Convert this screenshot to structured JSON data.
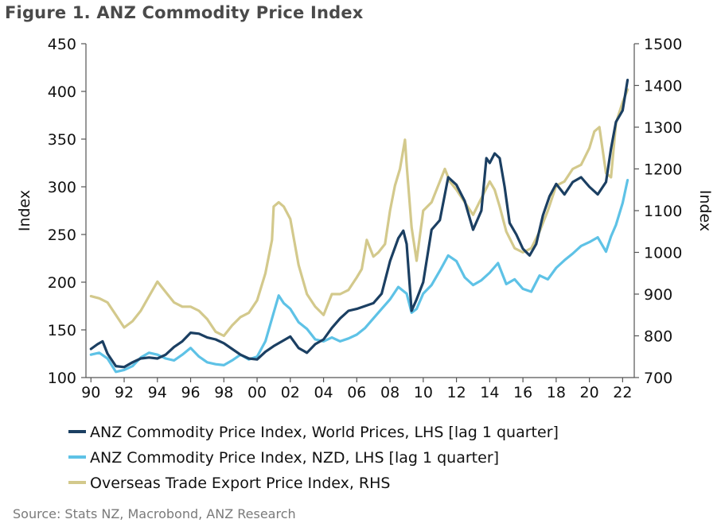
{
  "title": "Figure 1.  ANZ Commodity Price Index",
  "source": "Source: Stats NZ, Macrobond, ANZ Research",
  "chart_data": {
    "type": "line",
    "title": "Figure 1.  ANZ Commodity Price Index",
    "ylabel": "Index",
    "y2label": "Index",
    "ylim": [
      100,
      450
    ],
    "y2lim": [
      700,
      1500
    ],
    "yticks": [
      100,
      150,
      200,
      250,
      300,
      350,
      400,
      450
    ],
    "y2ticks": [
      700,
      800,
      900,
      1000,
      1100,
      1200,
      1300,
      1400,
      1500
    ],
    "xlim": [
      1989.7,
      2022.7
    ],
    "xticks": [
      1990,
      1992,
      1994,
      1996,
      1998,
      2000,
      2002,
      2004,
      2006,
      2008,
      2010,
      2012,
      2014,
      2016,
      2018,
      2020,
      2022
    ],
    "xticklabels": [
      "90",
      "92",
      "94",
      "96",
      "98",
      "00",
      "02",
      "04",
      "06",
      "08",
      "10",
      "12",
      "14",
      "16",
      "18",
      "20",
      "22"
    ],
    "grid": false,
    "legend_position": "bottom",
    "series": [
      {
        "name": "ANZ Commodity Price Index, World Prices, LHS [lag 1 quarter]",
        "axis": "left",
        "color": "#1b3f62",
        "x": [
          1990,
          1990.4,
          1990.7,
          1991,
          1991.5,
          1992,
          1992.5,
          1993,
          1993.5,
          1994,
          1994.5,
          1995,
          1995.5,
          1996,
          1996.5,
          1997,
          1997.5,
          1998,
          1998.5,
          1999,
          1999.5,
          2000,
          2000.5,
          2001,
          2001.5,
          2002,
          2002.5,
          2003,
          2003.5,
          2004,
          2004.5,
          2005,
          2005.5,
          2006,
          2006.5,
          2007,
          2007.5,
          2008,
          2008.5,
          2008.8,
          2009,
          2009.3,
          2009.6,
          2010,
          2010.5,
          2011,
          2011.5,
          2012,
          2012.5,
          2013,
          2013.5,
          2013.8,
          2014,
          2014.3,
          2014.6,
          2014.9,
          2015.2,
          2015.6,
          2016,
          2016.4,
          2016.8,
          2017.2,
          2017.6,
          2018,
          2018.5,
          2019,
          2019.5,
          2020,
          2020.5,
          2021,
          2021.3,
          2021.6,
          2022,
          2022.3
        ],
        "values": [
          130,
          135,
          138,
          125,
          112,
          111,
          116,
          120,
          121,
          120,
          124,
          132,
          138,
          147,
          146,
          142,
          140,
          136,
          130,
          124,
          120,
          119,
          127,
          133,
          138,
          143,
          131,
          126,
          135,
          140,
          152,
          162,
          170,
          172,
          175,
          178,
          188,
          222,
          246,
          254,
          240,
          170,
          182,
          200,
          255,
          265,
          310,
          302,
          285,
          255,
          275,
          330,
          325,
          335,
          330,
          300,
          262,
          250,
          235,
          228,
          240,
          270,
          290,
          303,
          292,
          305,
          310,
          300,
          292,
          305,
          340,
          368,
          380,
          412
        ]
      },
      {
        "name": "ANZ Commodity Price Index, NZD, LHS [lag 1 quarter]",
        "axis": "left",
        "color": "#5ec2e6",
        "x": [
          1990,
          1990.5,
          1991,
          1991.5,
          1992,
          1992.5,
          1993,
          1993.5,
          1994,
          1994.5,
          1995,
          1995.5,
          1996,
          1996.5,
          1997,
          1997.5,
          1998,
          1998.5,
          1999,
          1999.5,
          2000,
          2000.5,
          2001,
          2001.3,
          2001.6,
          2002,
          2002.5,
          2003,
          2003.5,
          2004,
          2004.5,
          2005,
          2005.5,
          2006,
          2006.5,
          2007,
          2007.5,
          2008,
          2008.5,
          2009,
          2009.3,
          2009.6,
          2010,
          2010.5,
          2011,
          2011.5,
          2012,
          2012.5,
          2013,
          2013.5,
          2014,
          2014.5,
          2015,
          2015.5,
          2016,
          2016.5,
          2017,
          2017.5,
          2018,
          2018.5,
          2019,
          2019.5,
          2020,
          2020.5,
          2021,
          2021.3,
          2021.6,
          2022,
          2022.3
        ],
        "values": [
          124,
          126,
          120,
          106,
          108,
          112,
          121,
          126,
          124,
          120,
          118,
          124,
          131,
          122,
          116,
          114,
          113,
          118,
          124,
          119,
          122,
          138,
          168,
          186,
          178,
          172,
          158,
          151,
          140,
          138,
          142,
          138,
          141,
          145,
          152,
          162,
          172,
          182,
          195,
          188,
          168,
          172,
          188,
          197,
          212,
          228,
          222,
          205,
          197,
          202,
          210,
          220,
          198,
          203,
          193,
          190,
          207,
          203,
          215,
          223,
          230,
          238,
          242,
          247,
          232,
          248,
          260,
          283,
          307
        ]
      },
      {
        "name": "Overseas Trade Export Price Index, RHS",
        "axis": "right",
        "color": "#d3c98c",
        "x": [
          1990,
          1990.5,
          1991,
          1991.5,
          1992,
          1992.5,
          1993,
          1993.5,
          1994,
          1994.5,
          1995,
          1995.5,
          1996,
          1996.5,
          1997,
          1997.5,
          1998,
          1998.5,
          1999,
          1999.5,
          2000,
          2000.5,
          2000.9,
          2001,
          2001.3,
          2001.6,
          2002,
          2002.5,
          2003,
          2003.5,
          2004,
          2004.5,
          2005,
          2005.5,
          2006,
          2006.3,
          2006.6,
          2007,
          2007.3,
          2007.7,
          2008,
          2008.3,
          2008.6,
          2008.9,
          2009,
          2009.3,
          2009.6,
          2010,
          2010.5,
          2011,
          2011.3,
          2011.6,
          2012,
          2012.5,
          2013,
          2013.5,
          2014,
          2014.3,
          2014.6,
          2015,
          2015.5,
          2016,
          2016.5,
          2017,
          2017.5,
          2018,
          2018.5,
          2019,
          2019.5,
          2020,
          2020.3,
          2020.6,
          2021,
          2021.3,
          2021.6,
          2022,
          2022.3
        ],
        "values": [
          895,
          890,
          880,
          850,
          820,
          835,
          860,
          895,
          930,
          905,
          880,
          870,
          870,
          860,
          840,
          810,
          800,
          825,
          845,
          855,
          885,
          950,
          1030,
          1110,
          1120,
          1110,
          1080,
          970,
          900,
          870,
          850,
          900,
          900,
          910,
          940,
          960,
          1030,
          990,
          1000,
          1020,
          1100,
          1160,
          1200,
          1270,
          1210,
          1060,
          980,
          1100,
          1120,
          1170,
          1200,
          1170,
          1150,
          1120,
          1090,
          1130,
          1170,
          1150,
          1110,
          1050,
          1010,
          1000,
          1010,
          1050,
          1100,
          1160,
          1170,
          1200,
          1210,
          1250,
          1290,
          1300,
          1190,
          1180,
          1310,
          1360,
          1390
        ]
      }
    ]
  }
}
